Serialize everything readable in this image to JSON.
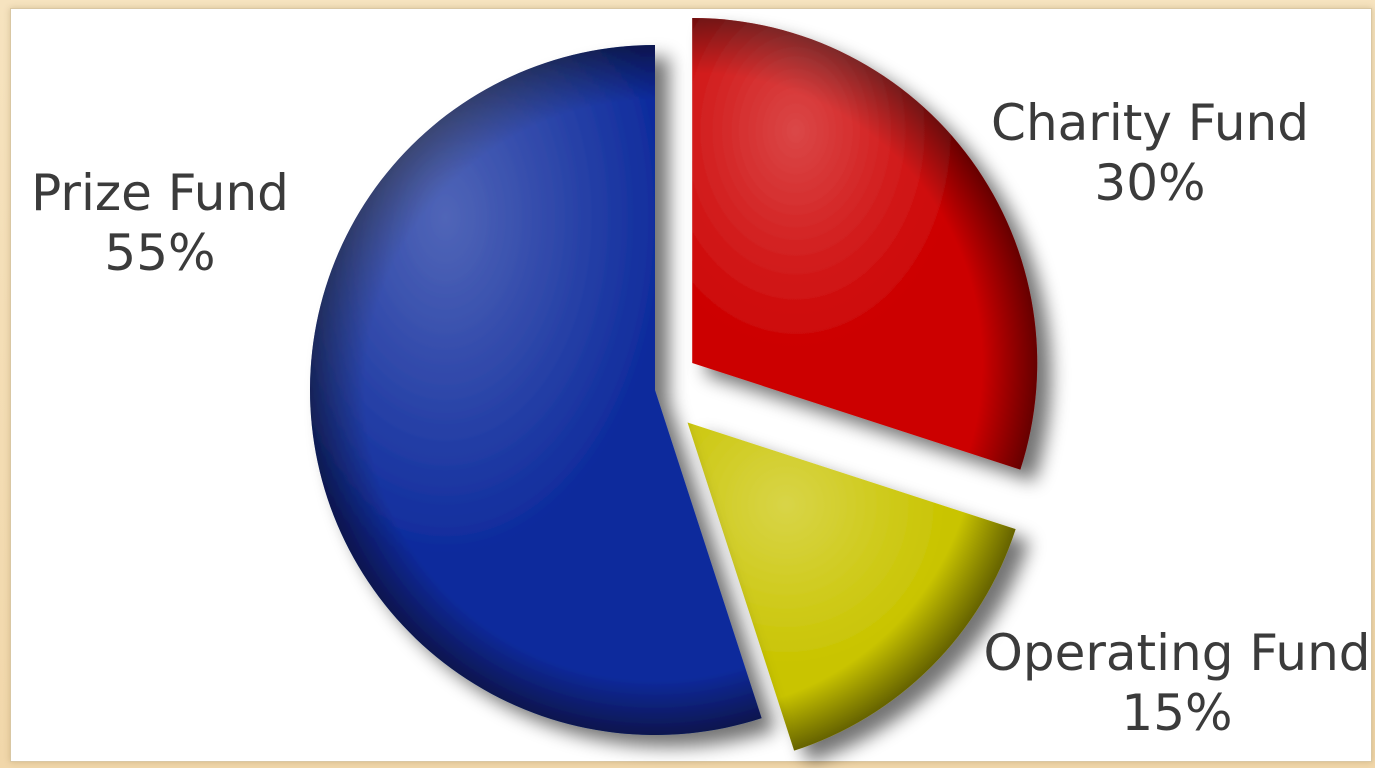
{
  "chart_data": {
    "type": "pie",
    "style": "3d-exploded",
    "slices": [
      {
        "label": "Prize Fund",
        "value": 55,
        "value_label": "55%",
        "color": "#0d2a9c"
      },
      {
        "label": "Charity Fund",
        "value": 30,
        "value_label": "30%",
        "color": "#cc0000"
      },
      {
        "label": "Operating Fund",
        "value": 15,
        "value_label": "15%",
        "color": "#c9c400"
      }
    ],
    "exploded": [
      "Charity Fund",
      "Operating Fund"
    ],
    "legend": "none",
    "labels_position": "outside"
  }
}
